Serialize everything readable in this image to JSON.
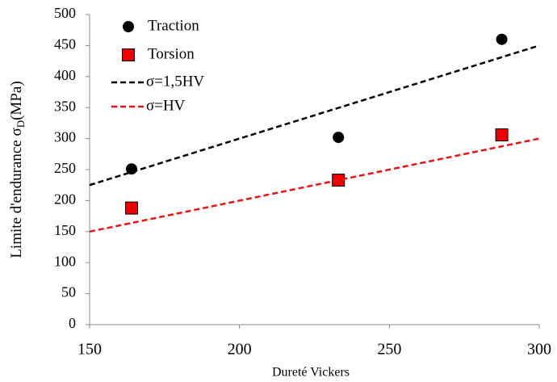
{
  "chart_data": {
    "type": "scatter",
    "x_label": "Dureté Vickers",
    "y_label": {
      "main": "Limite d'endurance σ",
      "sub": "D",
      "unit": "(MPa)"
    },
    "xlim": [
      150,
      300
    ],
    "xticks": [
      150,
      200,
      250,
      300
    ],
    "ylim": [
      0,
      500
    ],
    "yticks": [
      0,
      50,
      100,
      150,
      200,
      250,
      300,
      350,
      400,
      450,
      500
    ],
    "legend": "upper left",
    "series": [
      {
        "name": "Traction",
        "kind": "scatter",
        "marker": "circle",
        "color": "#000000",
        "x": [
          164,
          233,
          287.5
        ],
        "values": [
          251,
          302,
          460
        ]
      },
      {
        "name": "Torsion",
        "kind": "scatter",
        "marker": "square",
        "color": "#ee0000",
        "x": [
          164,
          233,
          287.5
        ],
        "values": [
          188,
          233,
          306
        ]
      },
      {
        "name": "σ=1,5HV",
        "kind": "line",
        "color": "#000000",
        "x": [
          150,
          300
        ],
        "values": [
          225,
          450
        ]
      },
      {
        "name": "σ=HV",
        "kind": "line",
        "color": "#ee1111",
        "x": [
          150,
          300
        ],
        "values": [
          150,
          300
        ]
      }
    ]
  }
}
